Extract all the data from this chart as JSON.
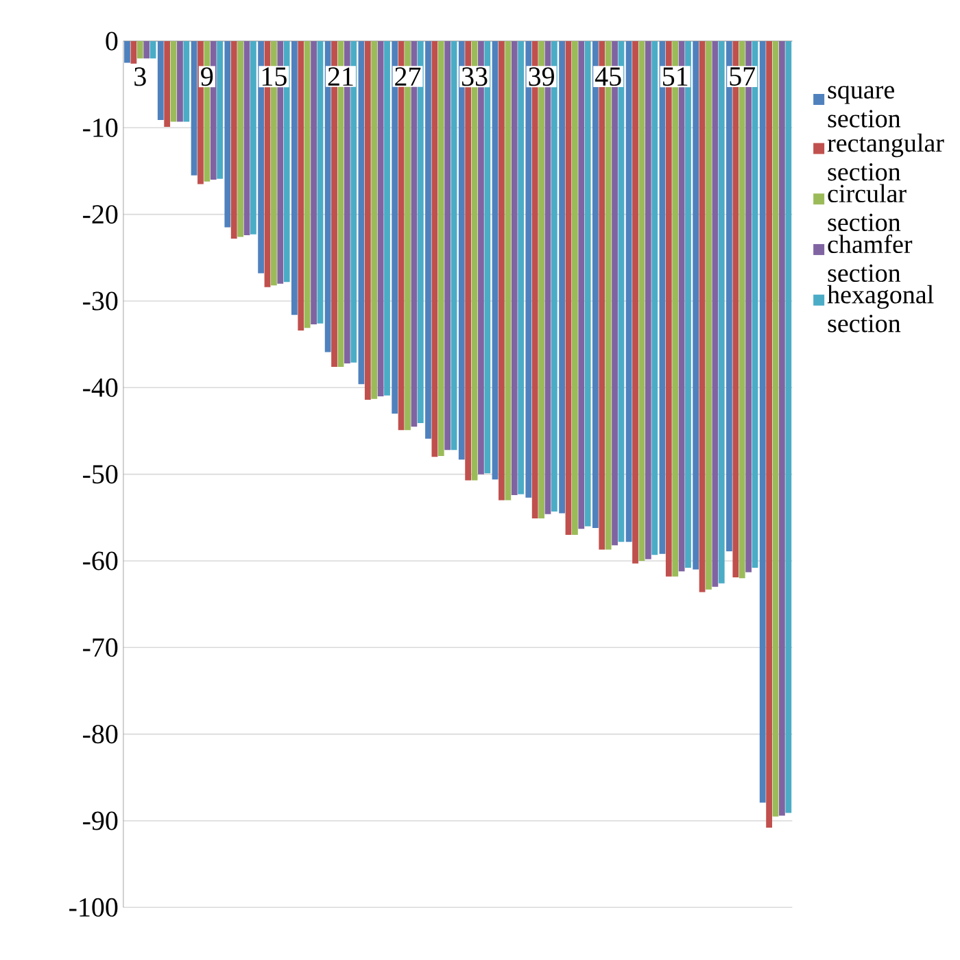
{
  "chart_data": {
    "type": "bar",
    "categories": [
      "3",
      null,
      "9",
      null,
      "15",
      null,
      "21",
      null,
      "27",
      null,
      "33",
      null,
      "39",
      null,
      "45",
      null,
      "51",
      null,
      "57",
      null
    ],
    "series": [
      {
        "name": "square section",
        "color": "#4f81bd",
        "values": [
          -2.5,
          -9.1,
          -15.5,
          -21.5,
          -26.8,
          -31.6,
          -35.9,
          -39.6,
          -43,
          -45.9,
          -48.3,
          -50.6,
          -52.7,
          -54.5,
          -56.2,
          -57.8,
          -59.2,
          -61,
          -58.9,
          -87.9
        ]
      },
      {
        "name": "rectangular section",
        "color": "#c0504d",
        "values": [
          -2.6,
          -9.9,
          -16.5,
          -22.8,
          -28.4,
          -33.4,
          -37.6,
          -41.4,
          -44.9,
          -48,
          -50.7,
          -53,
          -55.1,
          -57,
          -58.7,
          -60.3,
          -61.8,
          -63.6,
          -61.9,
          -90.8
        ]
      },
      {
        "name": "circular section",
        "color": "#9bbb59",
        "values": [
          -2,
          -9.3,
          -16.2,
          -22.6,
          -28.2,
          -33.1,
          -37.6,
          -41.3,
          -44.9,
          -47.9,
          -50.7,
          -53,
          -55.1,
          -57,
          -58.7,
          -60,
          -61.8,
          -63.3,
          -62,
          -89.5
        ]
      },
      {
        "name": "chamfer section",
        "color": "#8064a2",
        "values": [
          -2,
          -9.3,
          -16,
          -22.4,
          -28,
          -32.7,
          -37.2,
          -41,
          -44.5,
          -47.2,
          -50,
          -52.4,
          -54.6,
          -56.3,
          -58.2,
          -59.8,
          -61.2,
          -63,
          -61.3,
          -89.4
        ]
      },
      {
        "name": "hexagonal section",
        "color": "#4bacc6",
        "values": [
          -2,
          -9.3,
          -15.9,
          -22.3,
          -27.8,
          -32.6,
          -37.1,
          -40.9,
          -44.1,
          -47.2,
          -49.9,
          -52.3,
          -54.3,
          -56,
          -57.8,
          -59.3,
          -60.8,
          -62.6,
          -60.8,
          -89.1
        ]
      }
    ],
    "ylim": [
      -100,
      0
    ],
    "yticks": [
      0,
      -10,
      -20,
      -30,
      -40,
      -50,
      -60,
      -70,
      -80,
      -90,
      -100
    ],
    "grid": "y",
    "legend": "right"
  }
}
